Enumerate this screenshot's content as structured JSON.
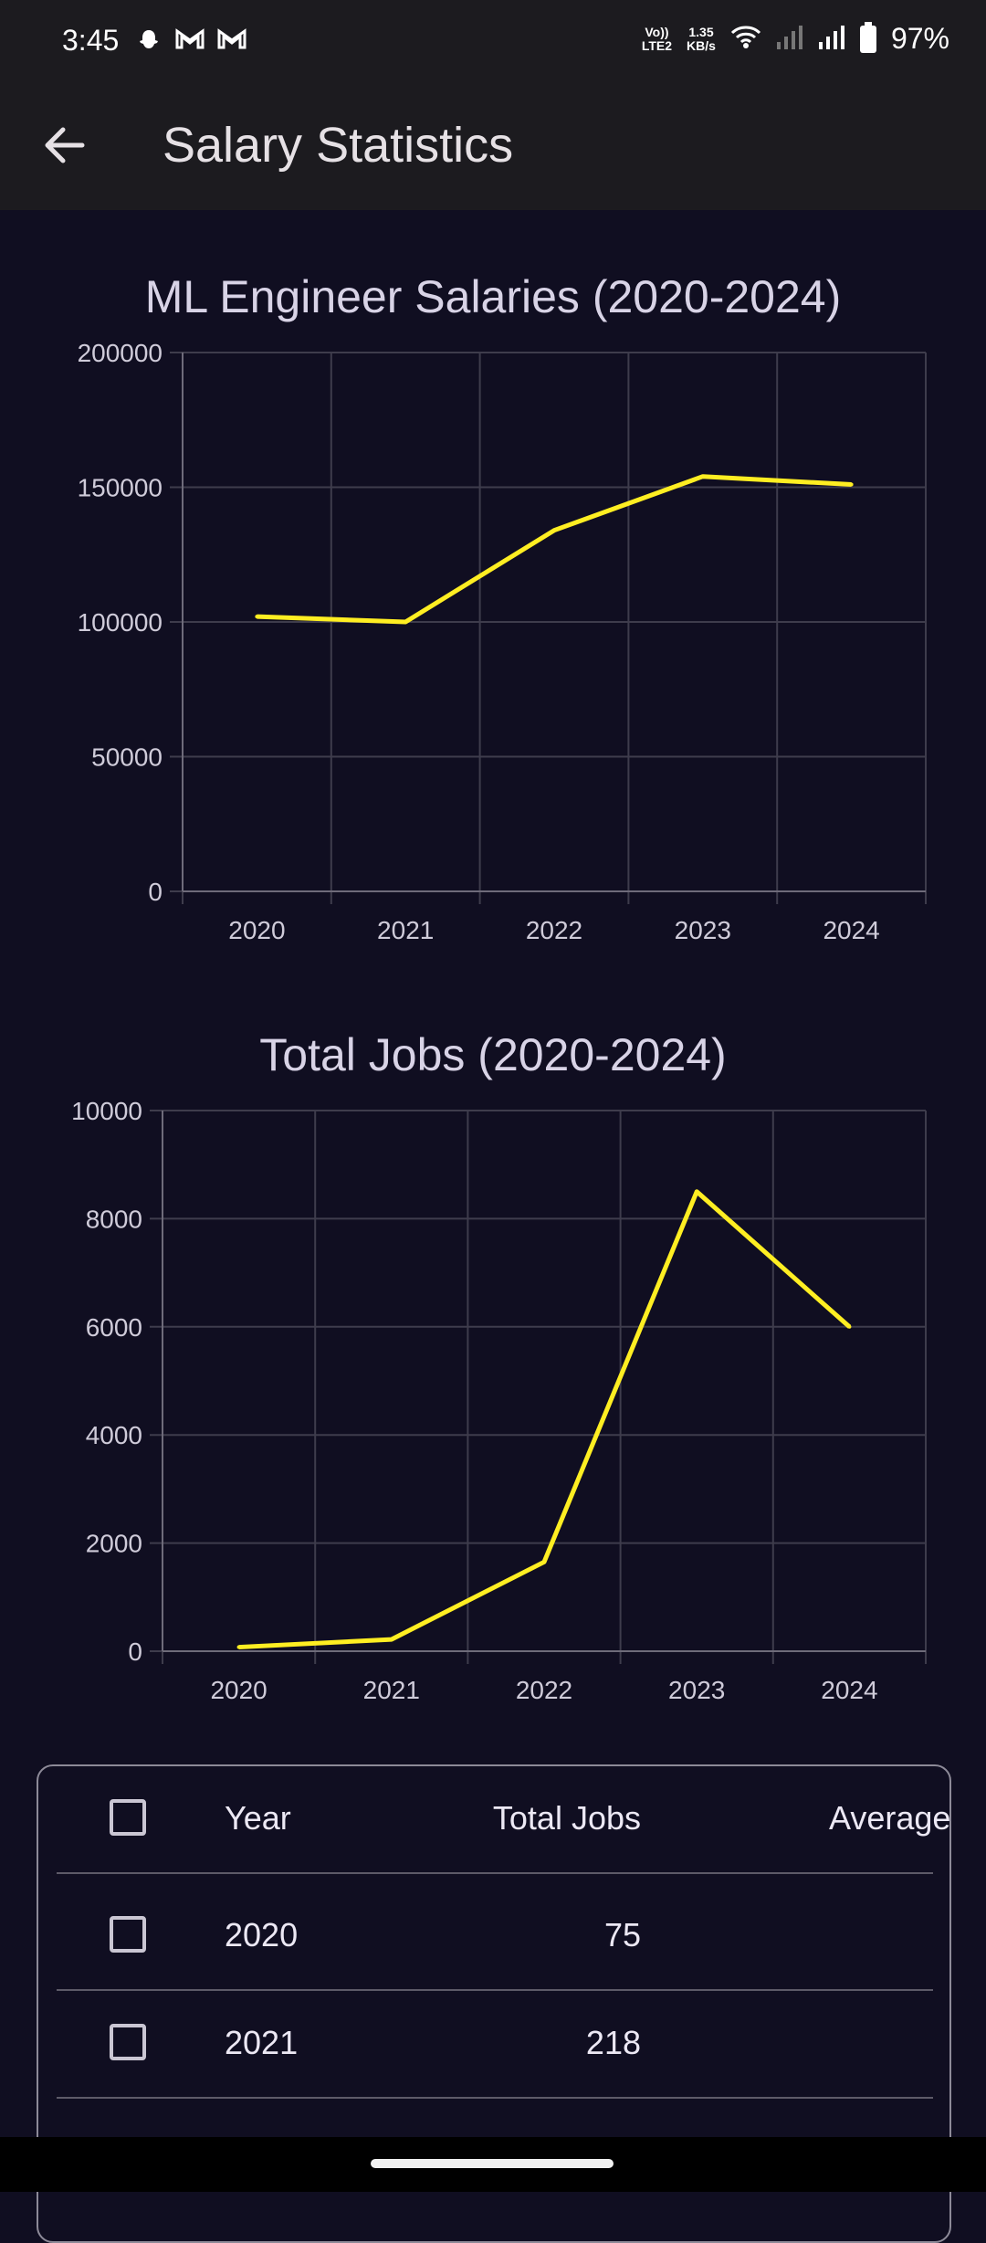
{
  "status_bar": {
    "time": "3:45",
    "left_icons": [
      "snapchat-icon",
      "gmail-icon",
      "gmail-icon"
    ],
    "network_label_top": "Vo))",
    "network_label_bottom": "LTE2",
    "speed_top": "1.35",
    "speed_bottom": "KB/s",
    "battery_percent": "97%"
  },
  "app_bar": {
    "title": "Salary Statistics",
    "back_icon": "arrow-back-icon"
  },
  "colors": {
    "background": "#100e21",
    "line": "#ffee22",
    "grid": "#3e3c4c"
  },
  "charts": [
    {
      "title": "ML Engineer Salaries (2020-2024)"
    },
    {
      "title": "Total Jobs (2020-2024)"
    }
  ],
  "chart_data": [
    {
      "type": "line",
      "title": "ML Engineer Salaries (2020-2024)",
      "categories": [
        "2020",
        "2021",
        "2022",
        "2023",
        "2024"
      ],
      "series": [
        {
          "values": [
            102000,
            100000,
            134000,
            154000,
            151000
          ]
        }
      ],
      "ylim": [
        0,
        200000
      ],
      "yticks": [
        "200000",
        "150000",
        "100000",
        "50000",
        "0"
      ],
      "grid": true
    },
    {
      "type": "line",
      "title": "Total Jobs (2020-2024)",
      "categories": [
        "2020",
        "2021",
        "2022",
        "2023",
        "2024"
      ],
      "series": [
        {
          "values": [
            75,
            218,
            1650,
            8500,
            6000
          ]
        }
      ],
      "ylim": [
        0,
        10000
      ],
      "yticks": [
        "10000",
        "8000",
        "6000",
        "4000",
        "2000",
        "0"
      ],
      "grid": true
    }
  ],
  "table": {
    "headers": {
      "year": "Year",
      "total_jobs": "Total Jobs",
      "average": "Average"
    },
    "rows": [
      {
        "year": "2020",
        "total_jobs": "75"
      },
      {
        "year": "2021",
        "total_jobs": "218"
      }
    ]
  }
}
